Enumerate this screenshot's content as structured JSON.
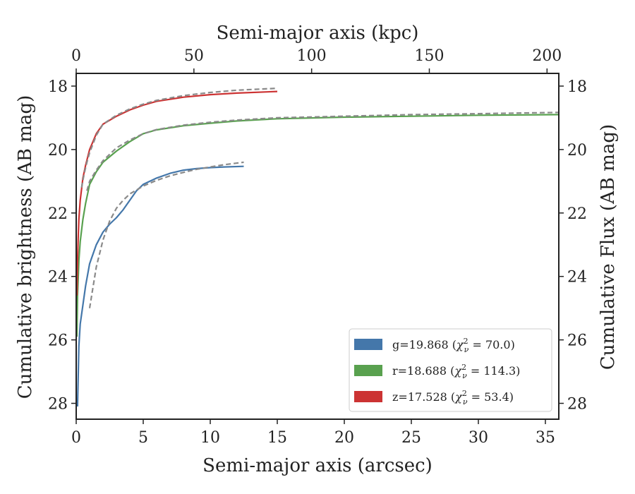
{
  "chart_data": {
    "type": "line",
    "title": "",
    "xlabel": "Semi-major axis (arcsec)",
    "ylabel": "Cumulative brightness (AB mag)",
    "x2label": "Semi-major axis (kpc)",
    "y2label": "Cumulative Flux (AB mag)",
    "xlim": [
      0,
      36
    ],
    "ylim": [
      28.5,
      17.6
    ],
    "x2lim": [
      0,
      205
    ],
    "y_inverted": true,
    "xticks": [
      0,
      5,
      10,
      15,
      20,
      25,
      30,
      35
    ],
    "yticks": [
      18,
      20,
      22,
      24,
      26,
      28
    ],
    "x2ticks": [
      0,
      50,
      100,
      150,
      200
    ],
    "grid": false,
    "legend_position": "lower-right",
    "series": [
      {
        "name": "g=19.868 (χ²ν = 70.0)",
        "legend": {
          "main": "g=19.868 (",
          "chi": "χ",
          "sup": "2",
          "sub": "ν",
          "rest": " = 70.0)"
        },
        "color": "#4477aa",
        "x": [
          0.1,
          0.2,
          0.3,
          0.5,
          0.7,
          1.0,
          1.5,
          2.0,
          2.5,
          3.0,
          3.5,
          4.0,
          4.5,
          5.0,
          5.5,
          6.0,
          7.0,
          8.0,
          9.0,
          10.0,
          11.0,
          12.5
        ],
        "y": [
          28.1,
          26.2,
          25.5,
          24.9,
          24.3,
          23.6,
          23.0,
          22.6,
          22.35,
          22.15,
          21.9,
          21.6,
          21.3,
          21.1,
          21.0,
          20.9,
          20.75,
          20.65,
          20.6,
          20.57,
          20.55,
          20.53
        ]
      },
      {
        "name": "r=18.688 (χ²ν = 114.3)",
        "legend": {
          "main": "r=18.688 (",
          "chi": "χ",
          "sup": "2",
          "sub": "ν",
          "rest": " = 114.3)"
        },
        "color": "#59a14f",
        "x": [
          0.05,
          0.1,
          0.2,
          0.3,
          0.5,
          0.7,
          1.0,
          1.5,
          2.0,
          3.0,
          4.0,
          5.0,
          6.0,
          8.0,
          10.0,
          12.0,
          15.0,
          20.0,
          25.0,
          30.0,
          36.0
        ],
        "y": [
          25.9,
          24.6,
          23.5,
          22.9,
          22.2,
          21.7,
          21.1,
          20.7,
          20.4,
          20.05,
          19.75,
          19.5,
          19.38,
          19.25,
          19.17,
          19.1,
          19.03,
          18.98,
          18.95,
          18.92,
          18.9
        ]
      },
      {
        "name": "z=17.528 (χ²ν = 53.4)",
        "legend": {
          "main": "z=17.528 (",
          "chi": "χ",
          "sup": "2",
          "sub": "ν",
          "rest": " = 53.4)"
        },
        "color": "#cc3333",
        "x": [
          0.05,
          0.1,
          0.15,
          0.2,
          0.3,
          0.5,
          0.7,
          1.0,
          1.5,
          2.0,
          3.0,
          4.0,
          5.0,
          6.0,
          8.0,
          10.0,
          12.0,
          15.0
        ],
        "y": [
          24.6,
          23.5,
          22.8,
          22.2,
          21.6,
          20.9,
          20.5,
          20.0,
          19.5,
          19.2,
          18.95,
          18.75,
          18.6,
          18.48,
          18.35,
          18.27,
          18.22,
          18.17
        ]
      }
    ],
    "model_fits": [
      {
        "color": "#8a8a8a",
        "style": "dashed",
        "x": [
          1.0,
          1.5,
          2.0,
          2.5,
          3.0,
          3.5,
          4.0,
          5.0,
          6.0,
          7.0,
          8.0,
          9.0,
          10.0,
          11.0,
          12.5
        ],
        "y": [
          25.0,
          23.7,
          22.85,
          22.25,
          21.85,
          21.6,
          21.4,
          21.15,
          20.97,
          20.83,
          20.72,
          20.62,
          20.55,
          20.48,
          20.4
        ]
      },
      {
        "color": "#8a8a8a",
        "style": "dashed",
        "x": [
          0.8,
          1.0,
          1.5,
          2.0,
          2.5,
          3.0,
          4.0,
          5.0,
          6.0,
          8.0,
          10.0,
          12.0,
          15.0,
          20.0,
          25.0,
          30.0,
          36.0
        ],
        "y": [
          21.3,
          21.0,
          20.65,
          20.35,
          20.15,
          19.95,
          19.7,
          19.5,
          19.37,
          19.23,
          19.14,
          19.07,
          19.0,
          18.95,
          18.9,
          18.87,
          18.83
        ]
      },
      {
        "color": "#8a8a8a",
        "style": "dashed",
        "x": [
          0.4,
          0.6,
          0.8,
          1.0,
          1.5,
          2.0,
          3.0,
          4.0,
          5.0,
          6.0,
          8.0,
          10.0,
          12.0,
          15.0
        ],
        "y": [
          21.2,
          20.75,
          20.4,
          20.1,
          19.55,
          19.2,
          18.92,
          18.72,
          18.57,
          18.45,
          18.3,
          18.2,
          18.13,
          18.07
        ]
      }
    ]
  }
}
